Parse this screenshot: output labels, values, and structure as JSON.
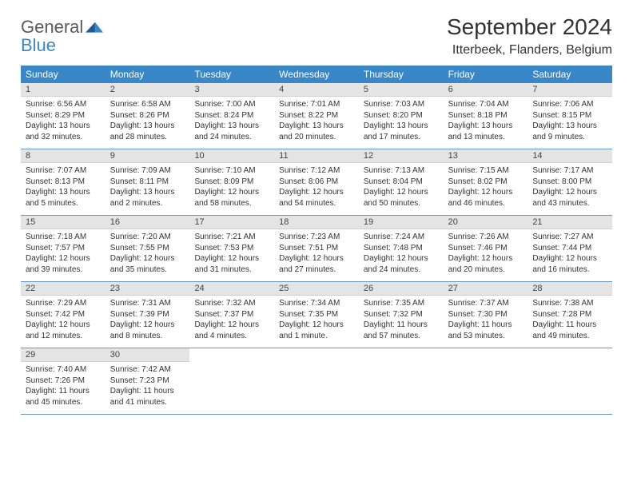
{
  "brand": {
    "line1": "General",
    "line2": "Blue"
  },
  "colors": {
    "header_bg": "#3a87c8",
    "header_text": "#ffffff",
    "daynum_bg": "#e4e4e4",
    "row_border": "#6998c2",
    "text": "#333333",
    "logo_gray": "#5a5a5a",
    "logo_blue": "#3a87c8"
  },
  "title": "September 2024",
  "location": "Itterbeek, Flanders, Belgium",
  "weekdays": [
    "Sunday",
    "Monday",
    "Tuesday",
    "Wednesday",
    "Thursday",
    "Friday",
    "Saturday"
  ],
  "days": [
    {
      "num": "1",
      "sunrise": "Sunrise: 6:56 AM",
      "sunset": "Sunset: 8:29 PM",
      "daylight": "Daylight: 13 hours and 32 minutes."
    },
    {
      "num": "2",
      "sunrise": "Sunrise: 6:58 AM",
      "sunset": "Sunset: 8:26 PM",
      "daylight": "Daylight: 13 hours and 28 minutes."
    },
    {
      "num": "3",
      "sunrise": "Sunrise: 7:00 AM",
      "sunset": "Sunset: 8:24 PM",
      "daylight": "Daylight: 13 hours and 24 minutes."
    },
    {
      "num": "4",
      "sunrise": "Sunrise: 7:01 AM",
      "sunset": "Sunset: 8:22 PM",
      "daylight": "Daylight: 13 hours and 20 minutes."
    },
    {
      "num": "5",
      "sunrise": "Sunrise: 7:03 AM",
      "sunset": "Sunset: 8:20 PM",
      "daylight": "Daylight: 13 hours and 17 minutes."
    },
    {
      "num": "6",
      "sunrise": "Sunrise: 7:04 AM",
      "sunset": "Sunset: 8:18 PM",
      "daylight": "Daylight: 13 hours and 13 minutes."
    },
    {
      "num": "7",
      "sunrise": "Sunrise: 7:06 AM",
      "sunset": "Sunset: 8:15 PM",
      "daylight": "Daylight: 13 hours and 9 minutes."
    },
    {
      "num": "8",
      "sunrise": "Sunrise: 7:07 AM",
      "sunset": "Sunset: 8:13 PM",
      "daylight": "Daylight: 13 hours and 5 minutes."
    },
    {
      "num": "9",
      "sunrise": "Sunrise: 7:09 AM",
      "sunset": "Sunset: 8:11 PM",
      "daylight": "Daylight: 13 hours and 2 minutes."
    },
    {
      "num": "10",
      "sunrise": "Sunrise: 7:10 AM",
      "sunset": "Sunset: 8:09 PM",
      "daylight": "Daylight: 12 hours and 58 minutes."
    },
    {
      "num": "11",
      "sunrise": "Sunrise: 7:12 AM",
      "sunset": "Sunset: 8:06 PM",
      "daylight": "Daylight: 12 hours and 54 minutes."
    },
    {
      "num": "12",
      "sunrise": "Sunrise: 7:13 AM",
      "sunset": "Sunset: 8:04 PM",
      "daylight": "Daylight: 12 hours and 50 minutes."
    },
    {
      "num": "13",
      "sunrise": "Sunrise: 7:15 AM",
      "sunset": "Sunset: 8:02 PM",
      "daylight": "Daylight: 12 hours and 46 minutes."
    },
    {
      "num": "14",
      "sunrise": "Sunrise: 7:17 AM",
      "sunset": "Sunset: 8:00 PM",
      "daylight": "Daylight: 12 hours and 43 minutes."
    },
    {
      "num": "15",
      "sunrise": "Sunrise: 7:18 AM",
      "sunset": "Sunset: 7:57 PM",
      "daylight": "Daylight: 12 hours and 39 minutes."
    },
    {
      "num": "16",
      "sunrise": "Sunrise: 7:20 AM",
      "sunset": "Sunset: 7:55 PM",
      "daylight": "Daylight: 12 hours and 35 minutes."
    },
    {
      "num": "17",
      "sunrise": "Sunrise: 7:21 AM",
      "sunset": "Sunset: 7:53 PM",
      "daylight": "Daylight: 12 hours and 31 minutes."
    },
    {
      "num": "18",
      "sunrise": "Sunrise: 7:23 AM",
      "sunset": "Sunset: 7:51 PM",
      "daylight": "Daylight: 12 hours and 27 minutes."
    },
    {
      "num": "19",
      "sunrise": "Sunrise: 7:24 AM",
      "sunset": "Sunset: 7:48 PM",
      "daylight": "Daylight: 12 hours and 24 minutes."
    },
    {
      "num": "20",
      "sunrise": "Sunrise: 7:26 AM",
      "sunset": "Sunset: 7:46 PM",
      "daylight": "Daylight: 12 hours and 20 minutes."
    },
    {
      "num": "21",
      "sunrise": "Sunrise: 7:27 AM",
      "sunset": "Sunset: 7:44 PM",
      "daylight": "Daylight: 12 hours and 16 minutes."
    },
    {
      "num": "22",
      "sunrise": "Sunrise: 7:29 AM",
      "sunset": "Sunset: 7:42 PM",
      "daylight": "Daylight: 12 hours and 12 minutes."
    },
    {
      "num": "23",
      "sunrise": "Sunrise: 7:31 AM",
      "sunset": "Sunset: 7:39 PM",
      "daylight": "Daylight: 12 hours and 8 minutes."
    },
    {
      "num": "24",
      "sunrise": "Sunrise: 7:32 AM",
      "sunset": "Sunset: 7:37 PM",
      "daylight": "Daylight: 12 hours and 4 minutes."
    },
    {
      "num": "25",
      "sunrise": "Sunrise: 7:34 AM",
      "sunset": "Sunset: 7:35 PM",
      "daylight": "Daylight: 12 hours and 1 minute."
    },
    {
      "num": "26",
      "sunrise": "Sunrise: 7:35 AM",
      "sunset": "Sunset: 7:32 PM",
      "daylight": "Daylight: 11 hours and 57 minutes."
    },
    {
      "num": "27",
      "sunrise": "Sunrise: 7:37 AM",
      "sunset": "Sunset: 7:30 PM",
      "daylight": "Daylight: 11 hours and 53 minutes."
    },
    {
      "num": "28",
      "sunrise": "Sunrise: 7:38 AM",
      "sunset": "Sunset: 7:28 PM",
      "daylight": "Daylight: 11 hours and 49 minutes."
    },
    {
      "num": "29",
      "sunrise": "Sunrise: 7:40 AM",
      "sunset": "Sunset: 7:26 PM",
      "daylight": "Daylight: 11 hours and 45 minutes."
    },
    {
      "num": "30",
      "sunrise": "Sunrise: 7:42 AM",
      "sunset": "Sunset: 7:23 PM",
      "daylight": "Daylight: 11 hours and 41 minutes."
    }
  ],
  "grid": {
    "rows": 5,
    "cols": 7,
    "start_offset": 0,
    "total_days": 30
  }
}
